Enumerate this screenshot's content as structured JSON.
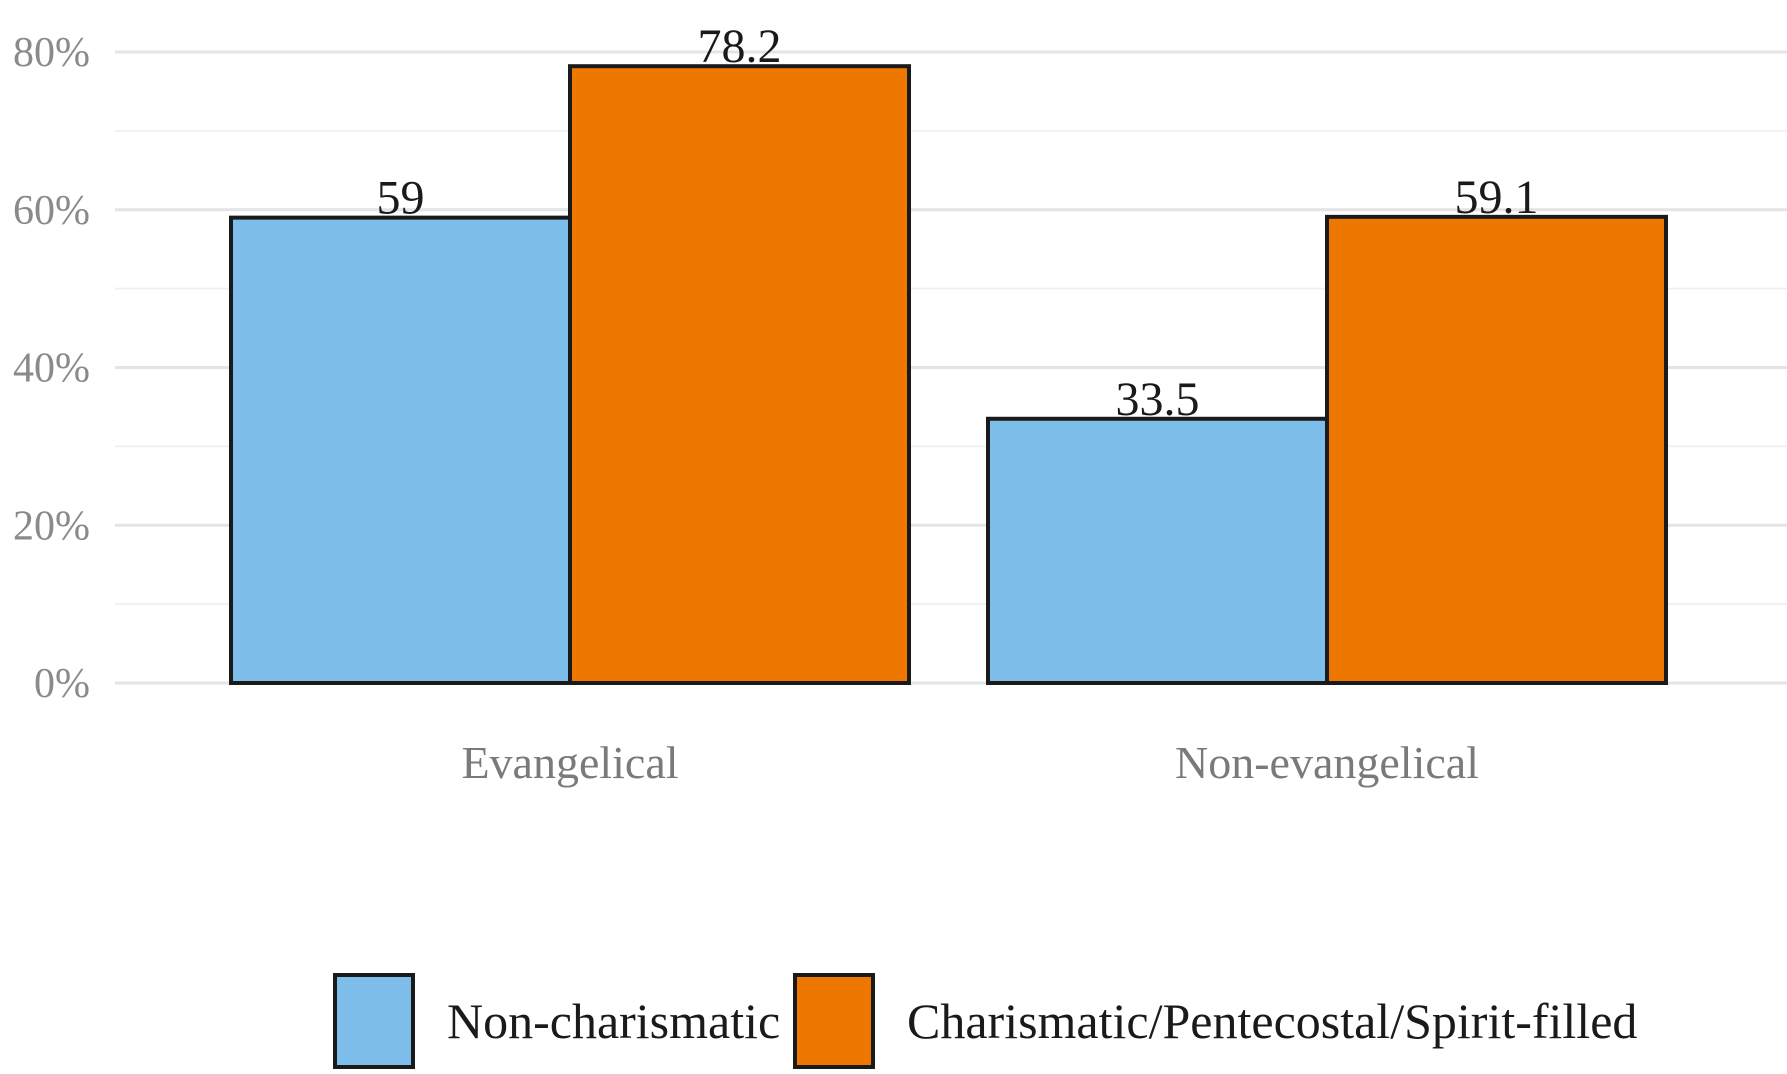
{
  "chart_data": {
    "type": "bar",
    "categories": [
      "Evangelical",
      "Non-evangelical"
    ],
    "series": [
      {
        "name": "Non-charismatic",
        "values": [
          59,
          33.5
        ],
        "color": "#7dbdea"
      },
      {
        "name": "Charismatic/Pentecostal/Spirit-filled",
        "values": [
          78.2,
          59.1
        ],
        "color": "#ee7700"
      }
    ],
    "data_labels": [
      [
        "59",
        "33.5"
      ],
      [
        "78.2",
        "59.1"
      ]
    ],
    "ylim": [
      0,
      80
    ],
    "yticks": [
      0,
      20,
      40,
      60,
      80
    ],
    "ytick_labels": [
      "0%",
      "20%",
      "40%",
      "60%",
      "80%"
    ],
    "title": "",
    "xlabel": "",
    "ylabel": "",
    "grid": true,
    "legend_position": "bottom"
  }
}
